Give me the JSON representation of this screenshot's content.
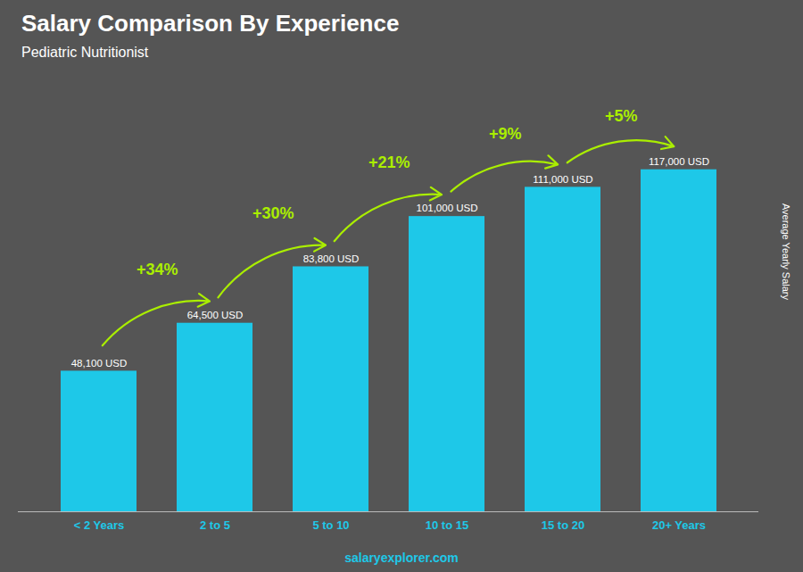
{
  "chart_data": {
    "type": "bar",
    "title": "Salary Comparison By Experience",
    "subtitle": "Pediatric Nutritionist",
    "ylabel": "Average Yearly Salary",
    "caption": "salaryexplorer.com",
    "categories": [
      "< 2 Years",
      "2 to 5",
      "5 to 10",
      "10 to 15",
      "15 to 20",
      "20+ Years"
    ],
    "values": [
      48100,
      64500,
      83800,
      101000,
      111000,
      117000
    ],
    "value_labels": [
      "48,100 USD",
      "64,500 USD",
      "83,800 USD",
      "101,000 USD",
      "111,000 USD",
      "117,000 USD"
    ],
    "data_labels": true,
    "annotations": [
      "+34%",
      "+30%",
      "+21%",
      "+9%",
      "+5%"
    ],
    "color": "#1EC8E8",
    "ylim": [
      0,
      145000
    ],
    "tick_labels": "x",
    "grid": false
  }
}
